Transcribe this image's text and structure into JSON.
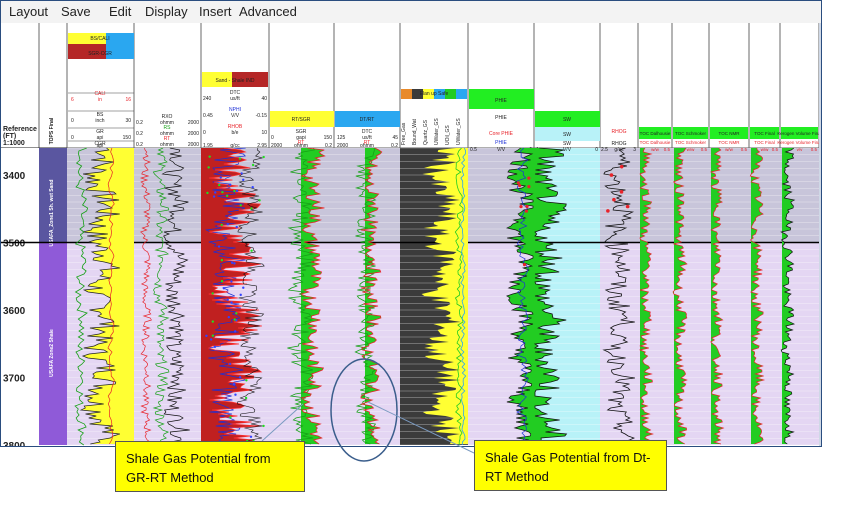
{
  "menu": [
    "Layout",
    "Save",
    "Edit",
    "Display",
    "Insert",
    "Advanced"
  ],
  "depth_header": [
    "Reference",
    "(FT)",
    "1:1000"
  ],
  "depth_ticks": [
    "3400",
    "3500",
    "3600",
    "3700",
    "3800"
  ],
  "tops": {
    "header": "TOPS Final",
    "zones": [
      "USAFA_Zone1 Sh. wet Sand",
      "USAFA Zone2 Shale"
    ]
  },
  "tracks": {
    "gr": {
      "labels": [
        "BS/CALI",
        "SGR-CGR",
        "CALI",
        "BS",
        "GR",
        "CGR"
      ],
      "units": [
        "in",
        "inch",
        "api",
        "api"
      ],
      "scales": [
        [
          "6",
          "16"
        ],
        [
          "0",
          "30"
        ],
        [
          "0",
          "150"
        ],
        [
          "0",
          "150"
        ]
      ]
    },
    "res": {
      "labels": [
        "RXO",
        "RS",
        "RT"
      ],
      "units": [
        "ohmm",
        "ohmm",
        "ohmm"
      ],
      "scales": [
        [
          "0.2",
          "2000"
        ],
        [
          "0.2",
          "2000"
        ],
        [
          "0.2",
          "2000"
        ]
      ]
    },
    "poro": {
      "labels": [
        "Sand - Shale IND",
        "DTC",
        "NPHI",
        "RHOB"
      ],
      "units": [
        "us/ft",
        "V/V",
        "b/e",
        "g/cc"
      ],
      "scales": [
        [
          "240",
          "40"
        ],
        [
          "0.45",
          "-0.15"
        ],
        [
          "0",
          "10"
        ],
        [
          "1.95",
          "2.95"
        ]
      ]
    },
    "rt_sgr": {
      "labels": [
        "RT/SGR",
        "SGR",
        "RT"
      ],
      "units": [
        "gapi",
        "ohmm"
      ],
      "scales": [
        [
          "0",
          "150"
        ],
        [
          "2000",
          "0.2"
        ]
      ]
    },
    "dt_rt": {
      "labels": [
        "DT/RT",
        "DTC",
        "RT"
      ],
      "units": [
        "us/ft",
        "ohmm"
      ],
      "scales": [
        [
          "125",
          "45"
        ],
        [
          "2000",
          "0.2"
        ]
      ]
    },
    "litho": {
      "header": "Elan up Safe",
      "cols": [
        "Free_Gas",
        "Bound_Wat",
        "Quartz_GS",
        "UWater_GS",
        "UOil_GS",
        "UWater_GS"
      ]
    },
    "phie": {
      "labels": [
        "PHIE",
        "PHIE",
        "Core PHIE",
        "PHIE"
      ],
      "units": [
        "V/V"
      ],
      "scales": [
        [
          "0.5",
          "0"
        ]
      ]
    },
    "sw": {
      "labels": [
        "SW",
        "SW",
        "SW"
      ],
      "units": [
        "V/V"
      ],
      "scales": [
        [
          "1",
          "0"
        ]
      ]
    },
    "rhog": {
      "labels": [
        "RHOG",
        "RHOG"
      ],
      "units": [
        "g/cc"
      ],
      "scales": [
        [
          "2.5",
          "3"
        ]
      ]
    },
    "toc": {
      "cols": [
        "TOC Dalhousie",
        "TOC Schmoker",
        "TOC NMR",
        "TOC Final",
        "Kerogen Volume Final"
      ],
      "units": [
        "w/w",
        "w/w",
        "w/w",
        "w/w",
        "v/v"
      ],
      "scales": [
        [
          "0",
          "0.5"
        ],
        [
          "0",
          "0.5"
        ],
        [
          "0",
          "0.5"
        ],
        [
          "0",
          "0.5"
        ],
        [
          "0",
          "0.5"
        ]
      ]
    }
  },
  "callouts": {
    "gr_rt": "Shale Gas Potential from GR-RT Method",
    "dt_rt": "Shale Gas Potential from Dt-RT Method"
  },
  "colors": {
    "zone1": "#bdb3e0",
    "zone2": "#e6d8f5",
    "gr_fill": "#ffff33",
    "gas_fill": "#22cc22",
    "red": "#e8232a",
    "blue": "#1c2fd6",
    "sw_fill": "#b8f2f8",
    "litho_bg": "#3b3b3b"
  }
}
